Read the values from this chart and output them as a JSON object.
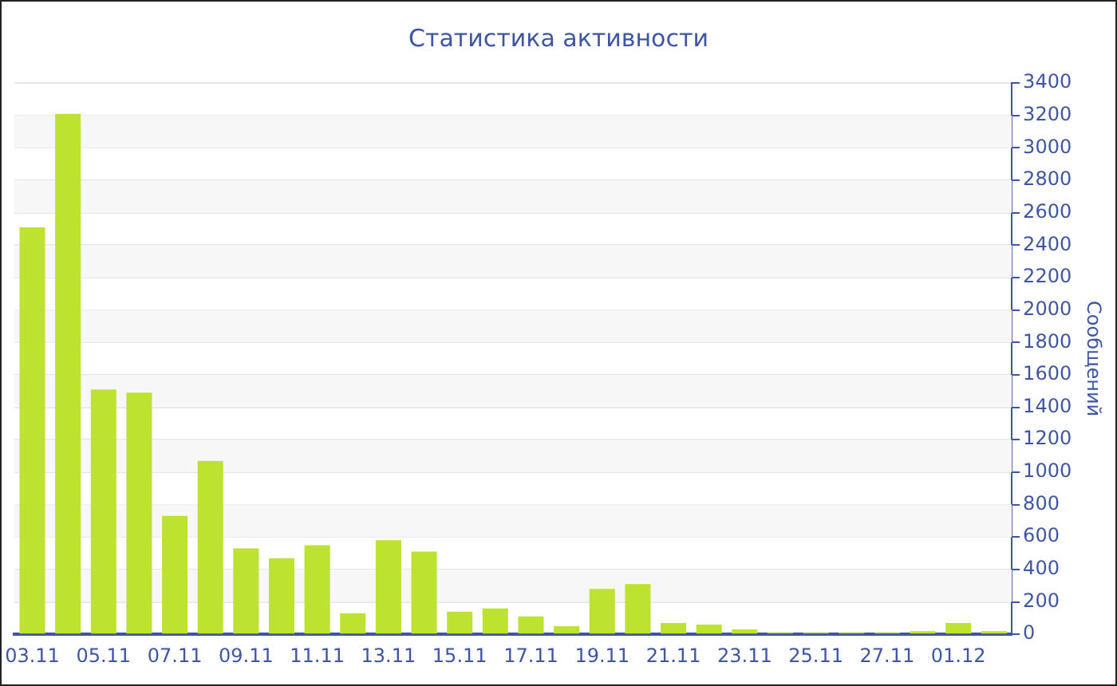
{
  "chart_data": {
    "type": "bar",
    "title": "Статистика активности",
    "ylabel": "Сообщений",
    "categories": [
      "03.11",
      null,
      "05.11",
      null,
      "07.11",
      null,
      "09.11",
      null,
      "11.11",
      null,
      "13.11",
      null,
      "15.11",
      null,
      "17.11",
      null,
      "19.11",
      null,
      "21.11",
      null,
      "23.11",
      null,
      "25.11",
      null,
      "27.11",
      null,
      "01.12",
      null
    ],
    "values": [
      2510,
      3210,
      1510,
      1490,
      730,
      1070,
      530,
      470,
      550,
      130,
      580,
      510,
      140,
      160,
      110,
      50,
      280,
      310,
      70,
      60,
      30,
      10,
      10,
      10,
      10,
      20,
      70,
      20
    ],
    "color": "#bde22f",
    "ylim": [
      0,
      3400
    ],
    "yticks": [
      0,
      200,
      400,
      600,
      800,
      1000,
      1200,
      1400,
      1600,
      1800,
      2000,
      2200,
      2400,
      2600,
      2800,
      3000,
      3200,
      3400
    ],
    "grid": "y",
    "legend": false
  }
}
